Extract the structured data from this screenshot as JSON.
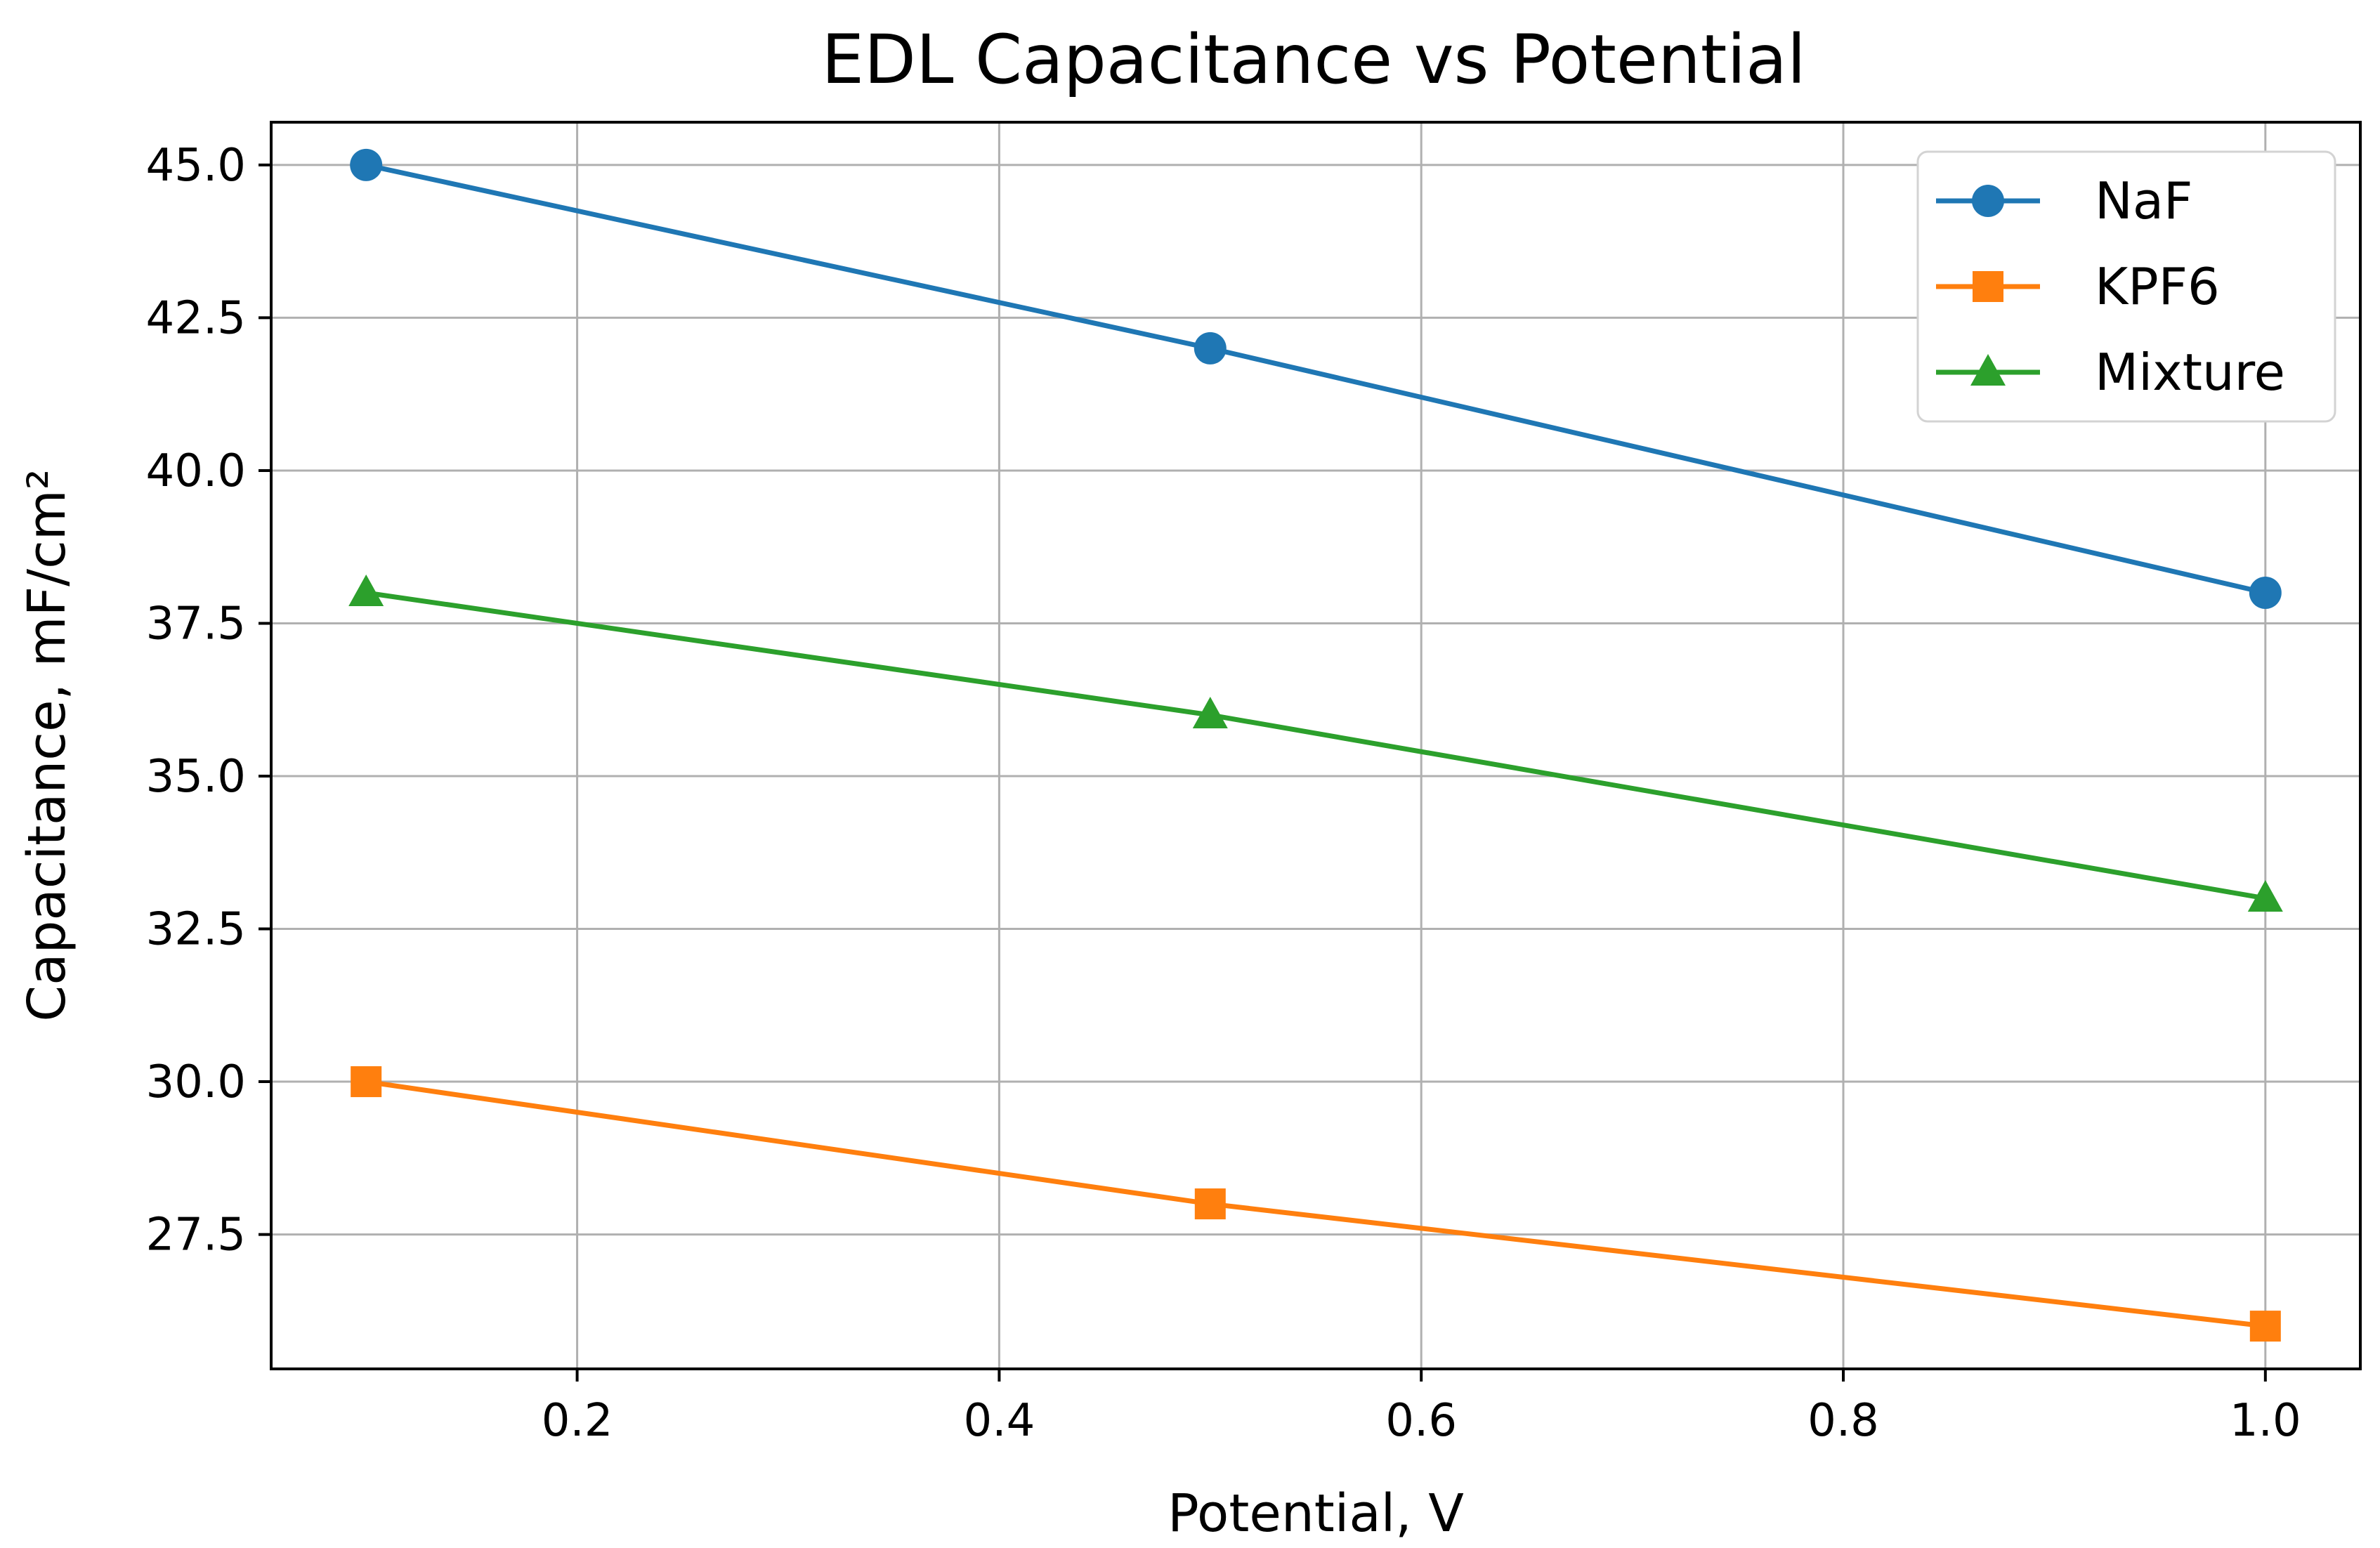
{
  "chart_data": {
    "type": "line",
    "title": "EDL Capacitance vs Potential",
    "xlabel": "Potential, V",
    "ylabel": "Capacitance, mF/cm²",
    "x": [
      0.1,
      0.5,
      1.0
    ],
    "xlim": [
      0.055,
      1.045
    ],
    "ylim": [
      25.3,
      45.7
    ],
    "xticks": [
      0.2,
      0.4,
      0.6,
      0.8,
      1.0
    ],
    "xtick_labels": [
      "0.2",
      "0.4",
      "0.6",
      "0.8",
      "1.0"
    ],
    "yticks": [
      27.5,
      30.0,
      32.5,
      35.0,
      37.5,
      40.0,
      42.5,
      45.0
    ],
    "ytick_labels": [
      "27.5",
      "30.0",
      "32.5",
      "35.0",
      "37.5",
      "40.0",
      "42.5",
      "45.0"
    ],
    "grid": true,
    "legend_position": "top-right",
    "series": [
      {
        "name": "NaF",
        "values": [
          45,
          42,
          38
        ],
        "color": "#1f77b4",
        "marker": "circle"
      },
      {
        "name": "KPF6",
        "values": [
          30,
          28,
          26
        ],
        "color": "#ff7f0e",
        "marker": "square"
      },
      {
        "name": "Mixture",
        "values": [
          38,
          36,
          33
        ],
        "color": "#2ca02c",
        "marker": "triangle"
      }
    ]
  }
}
